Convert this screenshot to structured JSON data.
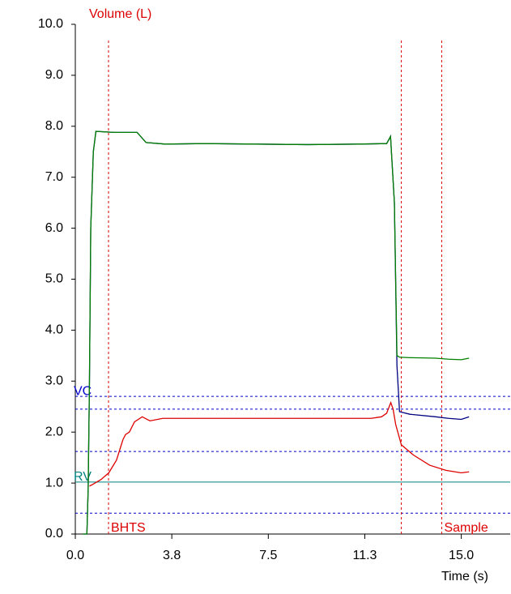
{
  "chart_data": {
    "type": "line",
    "title": "Volume (L)",
    "x_label": "Time (s)",
    "xlim": [
      0,
      16.9
    ],
    "ylim": [
      0,
      10
    ],
    "xticks": [
      {
        "value": 0,
        "label": "0.0"
      },
      {
        "value": 3.75,
        "label": "3.8"
      },
      {
        "value": 7.5,
        "label": "7.5"
      },
      {
        "value": 11.25,
        "label": "11.3"
      },
      {
        "value": 15,
        "label": "15.0"
      }
    ],
    "yticks": [
      {
        "value": 0,
        "label": "0.0"
      },
      {
        "value": 1,
        "label": "1.0"
      },
      {
        "value": 2,
        "label": "2.0"
      },
      {
        "value": 3,
        "label": "3.0"
      },
      {
        "value": 4,
        "label": "4.0"
      },
      {
        "value": 5,
        "label": "5.0"
      },
      {
        "value": 6,
        "label": "6.0"
      },
      {
        "value": 7,
        "label": "7.0"
      },
      {
        "value": 8,
        "label": "8.0"
      },
      {
        "value": 9,
        "label": "9.0"
      },
      {
        "value": 10,
        "label": "10.0"
      }
    ],
    "hlines": [
      {
        "value": 2.7,
        "label": "VC",
        "color": "#0000cc",
        "style": "dashed"
      },
      {
        "value": 2.45,
        "color": "#0000cc",
        "style": "dashed"
      },
      {
        "value": 1.62,
        "color": "#0000cc",
        "style": "dashed"
      },
      {
        "value": 1.02,
        "label": "RV",
        "color": "#008080",
        "style": "solid"
      },
      {
        "value": 0.41,
        "color": "#0000cc",
        "style": "dashed"
      }
    ],
    "vlines": [
      {
        "value": 1.29,
        "label": "BHTS",
        "color": "#dd0000"
      },
      {
        "value": 12.67,
        "color": "#dd0000"
      },
      {
        "value": 14.24,
        "label": "Sample",
        "color": "#dd0000"
      }
    ],
    "series": [
      {
        "color": "#000080",
        "x": [
          0.3,
          0.45,
          0.5,
          0.55,
          0.6,
          0.7,
          0.8,
          1.5,
          2.4,
          2.75,
          3.5,
          5,
          7,
          9,
          11,
          12.1,
          12.25,
          12.4,
          12.5,
          12.6,
          13.0,
          14.0,
          14.5,
          15.0,
          15.3
        ],
        "values": [
          0,
          0,
          0.9,
          3,
          6,
          7.5,
          7.9,
          7.88,
          7.88,
          7.68,
          7.65,
          7.66,
          7.65,
          7.64,
          7.65,
          7.66,
          7.8,
          6.5,
          3.3,
          2.4,
          2.35,
          2.3,
          2.27,
          2.25,
          2.3
        ]
      },
      {
        "color": "#008000",
        "x": [
          0.3,
          0.45,
          0.5,
          0.55,
          0.6,
          0.7,
          0.8,
          1.5,
          2.4,
          2.75,
          3.5,
          5,
          7,
          9,
          11,
          12.1,
          12.25,
          12.4,
          12.5,
          12.6,
          13.0,
          14.0,
          14.5,
          15.0,
          15.3
        ],
        "values": [
          0,
          0,
          0.9,
          3,
          6,
          7.5,
          7.9,
          7.88,
          7.88,
          7.68,
          7.65,
          7.66,
          7.65,
          7.64,
          7.65,
          7.66,
          7.8,
          6.5,
          3.5,
          3.47,
          3.46,
          3.45,
          3.43,
          3.42,
          3.45
        ]
      },
      {
        "color": "#dd0000",
        "x": [
          0.55,
          0.7,
          1.0,
          1.3,
          1.6,
          1.85,
          1.95,
          2.1,
          2.3,
          2.6,
          2.9,
          3.4,
          6,
          9,
          11.5,
          11.9,
          12.1,
          12.26,
          12.35,
          12.45,
          12.67,
          13.14,
          13.77,
          14.4,
          15.0,
          15.3
        ],
        "values": [
          0.94,
          0.98,
          1.07,
          1.2,
          1.45,
          1.85,
          1.95,
          2.0,
          2.2,
          2.3,
          2.22,
          2.27,
          2.27,
          2.27,
          2.27,
          2.3,
          2.37,
          2.58,
          2.45,
          2.15,
          1.75,
          1.55,
          1.35,
          1.25,
          1.2,
          1.22
        ]
      }
    ]
  }
}
